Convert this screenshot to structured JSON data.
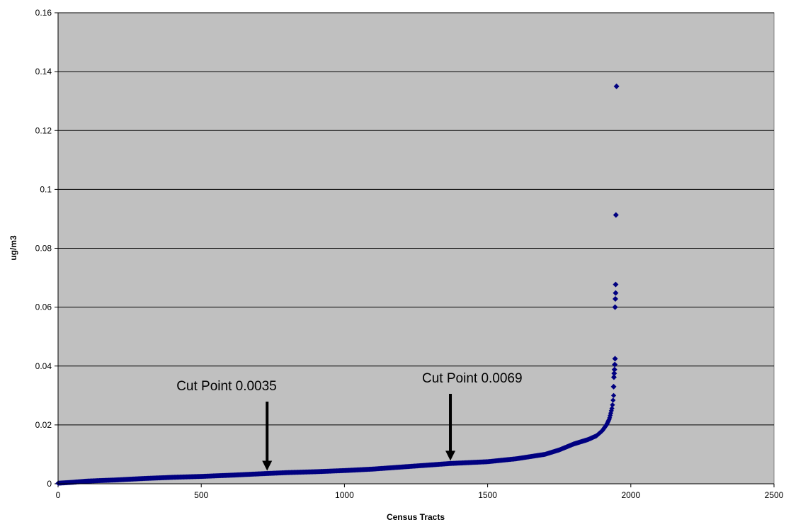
{
  "chart_data": {
    "type": "scatter",
    "title": "",
    "xlabel": "Census Tracts",
    "ylabel": "ug/m3",
    "xlim": [
      0,
      2500
    ],
    "ylim": [
      0,
      0.16
    ],
    "x_ticks": [
      "0",
      "500",
      "1000",
      "1500",
      "2000",
      "2500"
    ],
    "y_ticks": [
      "0",
      "0.02",
      "0.04",
      "0.06",
      "0.08",
      "0.1",
      "0.12",
      "0.14",
      "0.16"
    ],
    "grid": "horizontal",
    "legend": "none",
    "plot_background": "#c0c0c0",
    "marker_color": "#000080",
    "marker": "diamond",
    "n_points": 1950,
    "curve_profile": [
      [
        0,
        0.0002
      ],
      [
        50,
        0.0005
      ],
      [
        100,
        0.0009
      ],
      [
        200,
        0.0013
      ],
      [
        300,
        0.0018
      ],
      [
        400,
        0.0022
      ],
      [
        500,
        0.0025
      ],
      [
        600,
        0.0029
      ],
      [
        730,
        0.0035
      ],
      [
        800,
        0.0038
      ],
      [
        900,
        0.0041
      ],
      [
        1000,
        0.0045
      ],
      [
        1100,
        0.005
      ],
      [
        1200,
        0.0057
      ],
      [
        1300,
        0.0064
      ],
      [
        1370,
        0.0069
      ],
      [
        1500,
        0.0075
      ],
      [
        1600,
        0.0085
      ],
      [
        1700,
        0.01
      ],
      [
        1750,
        0.0115
      ],
      [
        1800,
        0.0135
      ],
      [
        1850,
        0.015
      ],
      [
        1880,
        0.0163
      ],
      [
        1900,
        0.018
      ],
      [
        1915,
        0.02
      ],
      [
        1925,
        0.022
      ],
      [
        1935,
        0.026
      ],
      [
        1940,
        0.03
      ]
    ],
    "outliers": [
      [
        1940,
        0.033
      ],
      [
        1941,
        0.0362
      ],
      [
        1942,
        0.0375
      ],
      [
        1943,
        0.0388
      ],
      [
        1944,
        0.0405
      ],
      [
        1945,
        0.0425
      ],
      [
        1945,
        0.06
      ],
      [
        1946,
        0.0628
      ],
      [
        1947,
        0.0648
      ],
      [
        1947,
        0.0677
      ],
      [
        1948,
        0.0913
      ],
      [
        1950,
        0.135
      ]
    ],
    "annotations": [
      {
        "text": "Cut Point 0.0035",
        "x": 730,
        "y": 0.0035
      },
      {
        "text": "Cut Point 0.0069",
        "x": 1370,
        "y": 0.0069
      }
    ]
  }
}
